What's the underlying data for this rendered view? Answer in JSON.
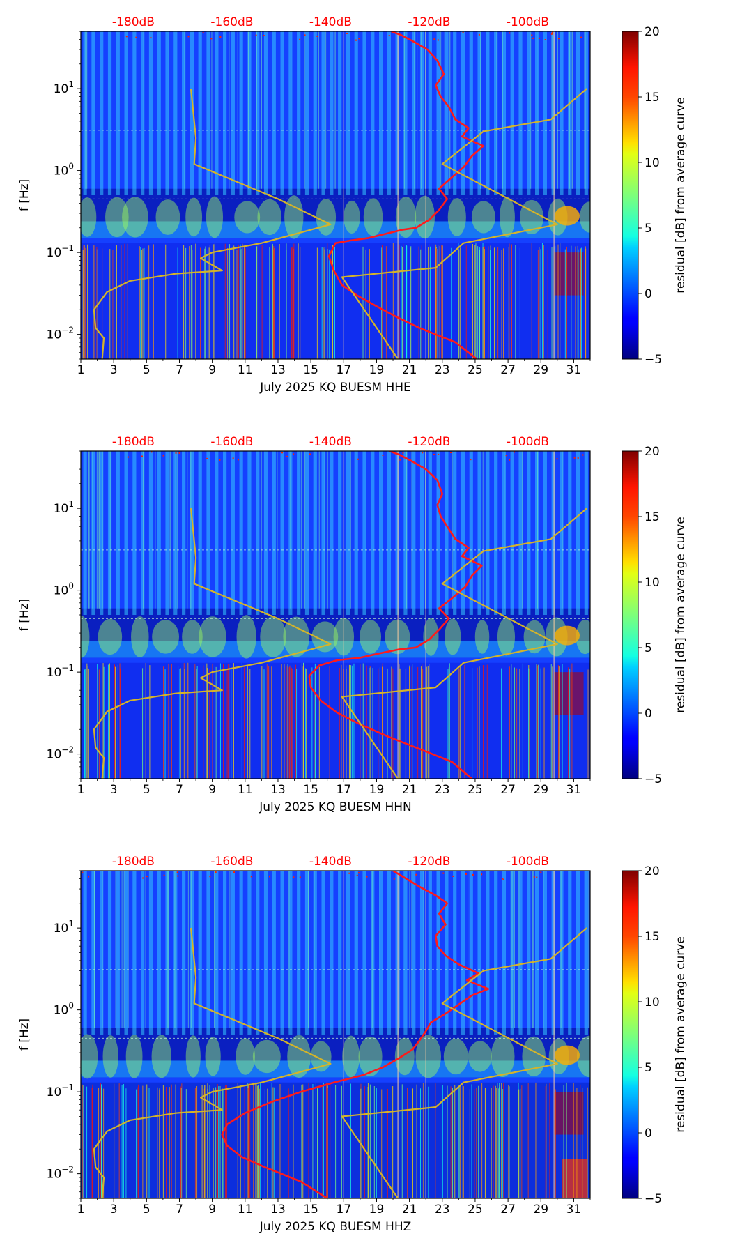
{
  "chart_data": [
    {
      "type": "heatmap",
      "xlabel": "July 2025 KQ BUESM  HHE",
      "ylabel": "f [Hz]",
      "x_ticks": [
        "1",
        "3",
        "5",
        "7",
        "9",
        "11",
        "13",
        "15",
        "17",
        "19",
        "21",
        "23",
        "25",
        "27",
        "29",
        "31"
      ],
      "xlim": [
        1,
        32
      ],
      "ylim": [
        0.005,
        50
      ],
      "y_ticks": [
        {
          "value": 0.01,
          "base": "10",
          "exp": "−2"
        },
        {
          "value": 0.1,
          "base": "10",
          "exp": "−1"
        },
        {
          "value": 1,
          "base": "10",
          "exp": "0"
        },
        {
          "value": 10,
          "base": "10",
          "exp": "1"
        }
      ],
      "top_axis": {
        "color": "#ff0000",
        "labels": [
          {
            "label": "-180dB",
            "day": 4.2
          },
          {
            "label": "-160dB",
            "day": 10.2
          },
          {
            "label": "-140dB",
            "day": 16.2
          },
          {
            "label": "-120dB",
            "day": 22.2
          },
          {
            "label": "-100dB",
            "day": 28.2
          }
        ]
      },
      "colorbar": {
        "label": "residual [dB] from average curve",
        "min": -5,
        "max": 20,
        "ticks": [
          "20",
          "15",
          "10",
          "5",
          "0",
          "−5"
        ]
      },
      "series": [
        {
          "name": "average PSD (red)",
          "color": "#ff1a1a",
          "points": [
            [
              25.1,
              0.005
            ],
            [
              23.8,
              0.008
            ],
            [
              21.6,
              0.012
            ],
            [
              20.3,
              0.016
            ],
            [
              19.0,
              0.022
            ],
            [
              17.8,
              0.03
            ],
            [
              16.9,
              0.04
            ],
            [
              16.4,
              0.06
            ],
            [
              16.1,
              0.09
            ],
            [
              16.5,
              0.13
            ],
            [
              17.4,
              0.14
            ],
            [
              18.5,
              0.15
            ],
            [
              19.6,
              0.17
            ],
            [
              20.6,
              0.19
            ],
            [
              21.4,
              0.2
            ],
            [
              22.2,
              0.25
            ],
            [
              22.8,
              0.33
            ],
            [
              23.3,
              0.45
            ],
            [
              22.8,
              0.6
            ],
            [
              23.5,
              0.8
            ],
            [
              24.3,
              1.1
            ],
            [
              24.8,
              1.5
            ],
            [
              25.5,
              2.0
            ],
            [
              24.2,
              2.6
            ],
            [
              24.6,
              3.3
            ],
            [
              23.8,
              4.2
            ],
            [
              23.4,
              6.0
            ],
            [
              22.9,
              8.0
            ],
            [
              22.6,
              11
            ],
            [
              23.1,
              15
            ],
            [
              22.7,
              22
            ],
            [
              22.1,
              30
            ],
            [
              21.2,
              38
            ],
            [
              20.5,
              45
            ],
            [
              19.9,
              50
            ]
          ]
        },
        {
          "name": "NLNM / NHNM model (yellow)",
          "color": "#d4b42a",
          "points": [
            [
              2.3,
              0.005
            ],
            [
              2.4,
              0.009
            ],
            [
              1.9,
              0.012
            ],
            [
              1.8,
              0.02
            ],
            [
              2.6,
              0.033
            ],
            [
              4.0,
              0.045
            ],
            [
              6.8,
              0.055
            ],
            [
              9.6,
              0.06
            ],
            [
              8.3,
              0.085
            ],
            [
              9.0,
              0.1
            ],
            [
              12.0,
              0.13
            ],
            [
              16.2,
              0.22
            ],
            [
              13.0,
              0.45
            ],
            [
              7.9,
              1.2
            ],
            [
              8.0,
              2.5
            ],
            [
              7.7,
              10
            ]
          ]
        },
        {
          "name": "NLNM / NHNM model (yellow)",
          "color": "#d4b42a",
          "points": [
            [
              20.3,
              0.005
            ],
            [
              16.9,
              0.05
            ],
            [
              22.6,
              0.065
            ],
            [
              24.3,
              0.13
            ],
            [
              30.0,
              0.22
            ],
            [
              23.0,
              1.2
            ],
            [
              25.5,
              3.0
            ],
            [
              29.6,
              4.2
            ],
            [
              31.8,
              10
            ]
          ]
        }
      ]
    },
    {
      "type": "heatmap",
      "xlabel": "July 2025 KQ BUESM  HHN",
      "ylabel": "f [Hz]",
      "x_ticks": [
        "1",
        "3",
        "5",
        "7",
        "9",
        "11",
        "13",
        "15",
        "17",
        "19",
        "21",
        "23",
        "25",
        "27",
        "29",
        "31"
      ],
      "xlim": [
        1,
        32
      ],
      "ylim": [
        0.005,
        50
      ],
      "y_ticks": [
        {
          "value": 0.01,
          "base": "10",
          "exp": "−2"
        },
        {
          "value": 0.1,
          "base": "10",
          "exp": "−1"
        },
        {
          "value": 1,
          "base": "10",
          "exp": "0"
        },
        {
          "value": 10,
          "base": "10",
          "exp": "1"
        }
      ],
      "top_axis": {
        "color": "#ff0000",
        "labels": [
          {
            "label": "-180dB",
            "day": 4.2
          },
          {
            "label": "-160dB",
            "day": 10.2
          },
          {
            "label": "-140dB",
            "day": 16.2
          },
          {
            "label": "-120dB",
            "day": 22.2
          },
          {
            "label": "-100dB",
            "day": 28.2
          }
        ]
      },
      "colorbar": {
        "label": "residual [dB] from average curve",
        "min": -5,
        "max": 20,
        "ticks": [
          "20",
          "15",
          "10",
          "5",
          "0",
          "−5"
        ]
      },
      "series": [
        {
          "name": "average PSD (red)",
          "color": "#ff1a1a",
          "points": [
            [
              24.8,
              0.005
            ],
            [
              23.6,
              0.008
            ],
            [
              21.4,
              0.012
            ],
            [
              19.8,
              0.016
            ],
            [
              18.0,
              0.023
            ],
            [
              16.6,
              0.032
            ],
            [
              15.6,
              0.045
            ],
            [
              15.0,
              0.065
            ],
            [
              14.9,
              0.09
            ],
            [
              15.5,
              0.12
            ],
            [
              16.6,
              0.14
            ],
            [
              18.0,
              0.15
            ],
            [
              19.2,
              0.17
            ],
            [
              20.4,
              0.19
            ],
            [
              21.4,
              0.2
            ],
            [
              22.2,
              0.25
            ],
            [
              22.8,
              0.33
            ],
            [
              23.4,
              0.45
            ],
            [
              22.8,
              0.6
            ],
            [
              23.6,
              0.8
            ],
            [
              24.4,
              1.1
            ],
            [
              24.8,
              1.5
            ],
            [
              25.4,
              2.0
            ],
            [
              24.2,
              2.6
            ],
            [
              24.6,
              3.3
            ],
            [
              23.8,
              4.2
            ],
            [
              23.3,
              6.0
            ],
            [
              22.9,
              8.0
            ],
            [
              22.7,
              11
            ],
            [
              23.0,
              15
            ],
            [
              22.7,
              22
            ],
            [
              22.0,
              30
            ],
            [
              21.1,
              38
            ],
            [
              20.4,
              45
            ],
            [
              19.8,
              50
            ]
          ]
        },
        {
          "name": "NLNM / NHNM model (yellow)",
          "color": "#d4b42a",
          "points": [
            [
              2.3,
              0.005
            ],
            [
              2.4,
              0.009
            ],
            [
              1.9,
              0.012
            ],
            [
              1.8,
              0.02
            ],
            [
              2.6,
              0.033
            ],
            [
              4.0,
              0.045
            ],
            [
              6.8,
              0.055
            ],
            [
              9.6,
              0.06
            ],
            [
              8.3,
              0.085
            ],
            [
              9.0,
              0.1
            ],
            [
              12.0,
              0.13
            ],
            [
              16.2,
              0.22
            ],
            [
              13.0,
              0.45
            ],
            [
              7.9,
              1.2
            ],
            [
              8.0,
              2.5
            ],
            [
              7.7,
              10
            ]
          ]
        },
        {
          "name": "NLNM / NHNM model (yellow)",
          "color": "#d4b42a",
          "points": [
            [
              20.3,
              0.005
            ],
            [
              16.9,
              0.05
            ],
            [
              22.6,
              0.065
            ],
            [
              24.3,
              0.13
            ],
            [
              30.0,
              0.22
            ],
            [
              23.0,
              1.2
            ],
            [
              25.5,
              3.0
            ],
            [
              29.6,
              4.2
            ],
            [
              31.8,
              10
            ]
          ]
        }
      ]
    },
    {
      "type": "heatmap",
      "xlabel": "July 2025 KQ BUESM  HHZ",
      "ylabel": "f [Hz]",
      "x_ticks": [
        "1",
        "3",
        "5",
        "7",
        "9",
        "11",
        "13",
        "15",
        "17",
        "19",
        "21",
        "23",
        "25",
        "27",
        "29",
        "31"
      ],
      "xlim": [
        1,
        32
      ],
      "ylim": [
        0.005,
        50
      ],
      "y_ticks": [
        {
          "value": 0.01,
          "base": "10",
          "exp": "−2"
        },
        {
          "value": 0.1,
          "base": "10",
          "exp": "−1"
        },
        {
          "value": 1,
          "base": "10",
          "exp": "0"
        },
        {
          "value": 10,
          "base": "10",
          "exp": "1"
        }
      ],
      "top_axis": {
        "color": "#ff0000",
        "labels": [
          {
            "label": "-180dB",
            "day": 4.2
          },
          {
            "label": "-160dB",
            "day": 10.2
          },
          {
            "label": "-140dB",
            "day": 16.2
          },
          {
            "label": "-120dB",
            "day": 22.2
          },
          {
            "label": "-100dB",
            "day": 28.2
          }
        ]
      },
      "colorbar": {
        "label": "residual [dB] from average curve",
        "min": -5,
        "max": 20,
        "ticks": [
          "20",
          "15",
          "10",
          "5",
          "0",
          "−5"
        ]
      },
      "series": [
        {
          "name": "average PSD (red)",
          "color": "#ff1a1a",
          "points": [
            [
              16.0,
              0.005
            ],
            [
              14.4,
              0.008
            ],
            [
              12.2,
              0.012
            ],
            [
              10.8,
              0.016
            ],
            [
              9.9,
              0.022
            ],
            [
              9.6,
              0.03
            ],
            [
              9.9,
              0.04
            ],
            [
              11.0,
              0.055
            ],
            [
              12.6,
              0.075
            ],
            [
              14.4,
              0.1
            ],
            [
              16.4,
              0.13
            ],
            [
              18.2,
              0.16
            ],
            [
              19.4,
              0.2
            ],
            [
              20.4,
              0.26
            ],
            [
              21.2,
              0.33
            ],
            [
              21.6,
              0.42
            ],
            [
              22.0,
              0.55
            ],
            [
              22.3,
              0.7
            ],
            [
              23.2,
              0.9
            ],
            [
              24.1,
              1.2
            ],
            [
              24.8,
              1.5
            ],
            [
              25.8,
              1.8
            ],
            [
              24.5,
              2.3
            ],
            [
              25.2,
              2.8
            ],
            [
              24.0,
              3.6
            ],
            [
              23.2,
              4.6
            ],
            [
              22.7,
              6.0
            ],
            [
              22.6,
              8.0
            ],
            [
              23.2,
              11
            ],
            [
              22.8,
              15
            ],
            [
              23.3,
              20
            ],
            [
              22.6,
              25
            ],
            [
              21.6,
              32
            ],
            [
              20.8,
              40
            ],
            [
              20.0,
              50
            ]
          ]
        },
        {
          "name": "NLNM / NHNM model (yellow)",
          "color": "#d4b42a",
          "points": [
            [
              2.3,
              0.005
            ],
            [
              2.4,
              0.009
            ],
            [
              1.9,
              0.012
            ],
            [
              1.8,
              0.02
            ],
            [
              2.6,
              0.033
            ],
            [
              4.0,
              0.045
            ],
            [
              6.8,
              0.055
            ],
            [
              9.6,
              0.06
            ],
            [
              8.3,
              0.085
            ],
            [
              9.0,
              0.1
            ],
            [
              12.0,
              0.13
            ],
            [
              16.2,
              0.22
            ],
            [
              13.0,
              0.45
            ],
            [
              7.9,
              1.2
            ],
            [
              8.0,
              2.5
            ],
            [
              7.7,
              10
            ]
          ]
        },
        {
          "name": "NLNM / NHNM model (yellow)",
          "color": "#d4b42a",
          "points": [
            [
              20.3,
              0.005
            ],
            [
              16.9,
              0.05
            ],
            [
              22.6,
              0.065
            ],
            [
              24.3,
              0.13
            ],
            [
              30.0,
              0.22
            ],
            [
              23.0,
              1.2
            ],
            [
              25.5,
              3.0
            ],
            [
              29.6,
              4.2
            ],
            [
              31.8,
              10
            ]
          ]
        }
      ]
    }
  ]
}
